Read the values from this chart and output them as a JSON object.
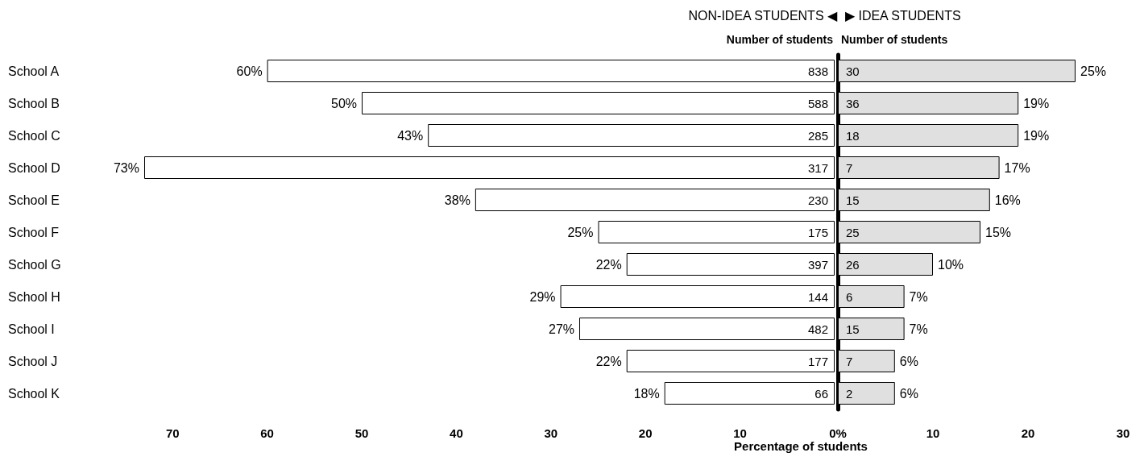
{
  "chart_data": [
    {
      "type": "bar",
      "orientation": "horizontal",
      "title": "NON-IDEA STUDENTS ◀",
      "categories": [
        "School A",
        "School B",
        "School C",
        "School D",
        "School E",
        "School F",
        "School G",
        "School H",
        "School I",
        "School J",
        "School K"
      ],
      "series": [
        {
          "color": "#ffffff",
          "values": [
            60,
            50,
            43,
            73,
            38,
            25,
            22,
            29,
            27,
            22,
            18
          ],
          "value_labels": [
            "60%",
            "50%",
            "43%",
            "73%",
            "38%",
            "25%",
            "22%",
            "29%",
            "27%",
            "22%",
            "18%"
          ]
        }
      ],
      "xlim": [
        73,
        0
      ],
      "xticks": [
        70,
        60,
        50,
        40,
        30,
        20,
        10
      ],
      "annotations": [
        "Number of students",
        "838",
        "588",
        "285",
        "317",
        "230",
        "175",
        "397",
        "144",
        "482",
        "177",
        "66"
      ],
      "grid": false
    },
    {
      "type": "bar",
      "orientation": "horizontal",
      "title": "▶ IDEA STUDENTS",
      "xlabel": "Percentage of students",
      "categories": [
        null,
        null,
        null,
        null,
        null,
        null,
        null,
        null,
        null,
        null,
        null
      ],
      "series": [
        {
          "color": "#e0e0e0",
          "values": [
            25,
            19,
            19,
            17,
            16,
            15,
            10,
            7,
            7,
            6,
            6
          ],
          "value_labels": [
            "25%",
            "19%",
            "19%",
            "17%",
            "16%",
            "15%",
            "10%",
            "7%",
            "7%",
            "6%",
            "6%"
          ]
        }
      ],
      "xlim": [
        0,
        30
      ],
      "xticks": [
        {
          "value": 0,
          "label": "0%"
        },
        10,
        20,
        30
      ],
      "annotations": [
        "Number of students",
        "30",
        "36",
        "18",
        "7",
        "15",
        "25",
        "26",
        "6",
        "15",
        "7",
        "2"
      ],
      "tick_labels": "x",
      "grid": false
    }
  ]
}
